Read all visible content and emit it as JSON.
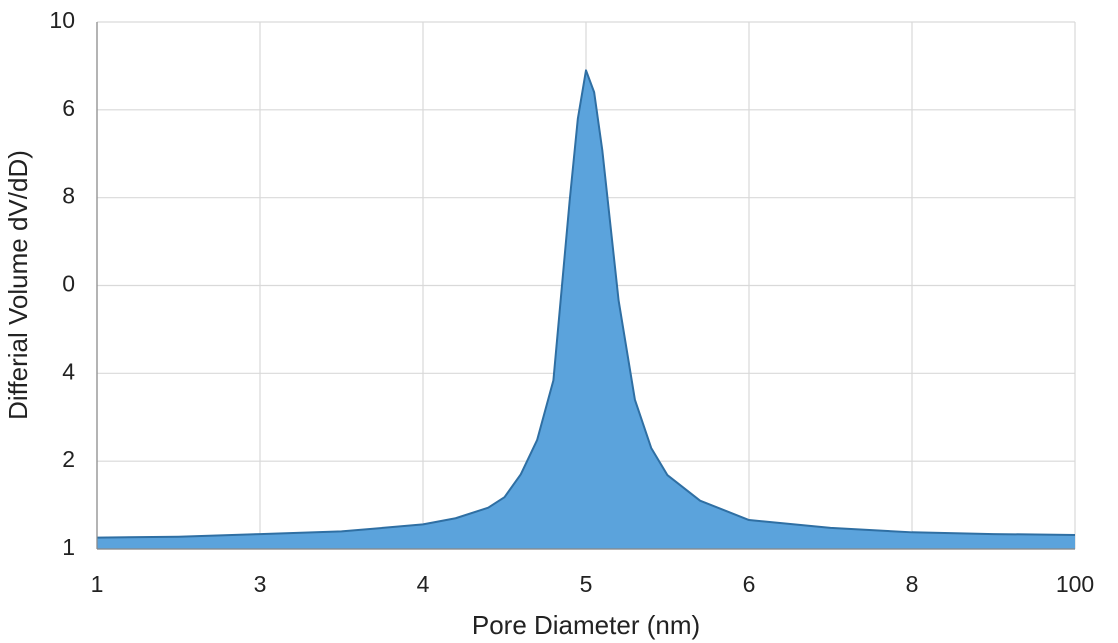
{
  "chart_data": {
    "type": "area",
    "x_label": "Pore Diameter (nm)",
    "y_label": "Differial Volume dV/dD)",
    "x": [
      0,
      0.5,
      1,
      1.5,
      2,
      2.2,
      2.4,
      2.5,
      2.6,
      2.7,
      2.8,
      2.9,
      2.95,
      3.0,
      3.05,
      3.1,
      3.2,
      3.3,
      3.4,
      3.5,
      3.7,
      4,
      4.5,
      5,
      5.5,
      6
    ],
    "values": [
      0.13,
      0.14,
      0.17,
      0.2,
      0.28,
      0.35,
      0.47,
      0.59,
      0.85,
      1.24,
      1.92,
      3.97,
      4.9,
      5.45,
      5.2,
      4.54,
      2.83,
      1.7,
      1.15,
      0.84,
      0.55,
      0.33,
      0.24,
      0.19,
      0.17,
      0.16
    ],
    "color": "#5ba3dc",
    "line_color": "#2f6fa3",
    "xlim": [
      0,
      6
    ],
    "ylim": [
      0,
      6
    ],
    "xticks": [
      {
        "value": 0,
        "label": "1"
      },
      {
        "value": 1,
        "label": "3"
      },
      {
        "value": 2,
        "label": "4"
      },
      {
        "value": 3,
        "label": "5"
      },
      {
        "value": 4,
        "label": "6"
      },
      {
        "value": 5,
        "label": "8"
      },
      {
        "value": 6,
        "label": "100"
      }
    ],
    "yticks": [
      {
        "value": 0,
        "label": "1"
      },
      {
        "value": 1,
        "label": "2"
      },
      {
        "value": 2,
        "label": "4"
      },
      {
        "value": 3,
        "label": "0"
      },
      {
        "value": 4,
        "label": "8"
      },
      {
        "value": 5,
        "label": "6"
      },
      {
        "value": 6,
        "label": "10"
      }
    ],
    "grid": true
  }
}
